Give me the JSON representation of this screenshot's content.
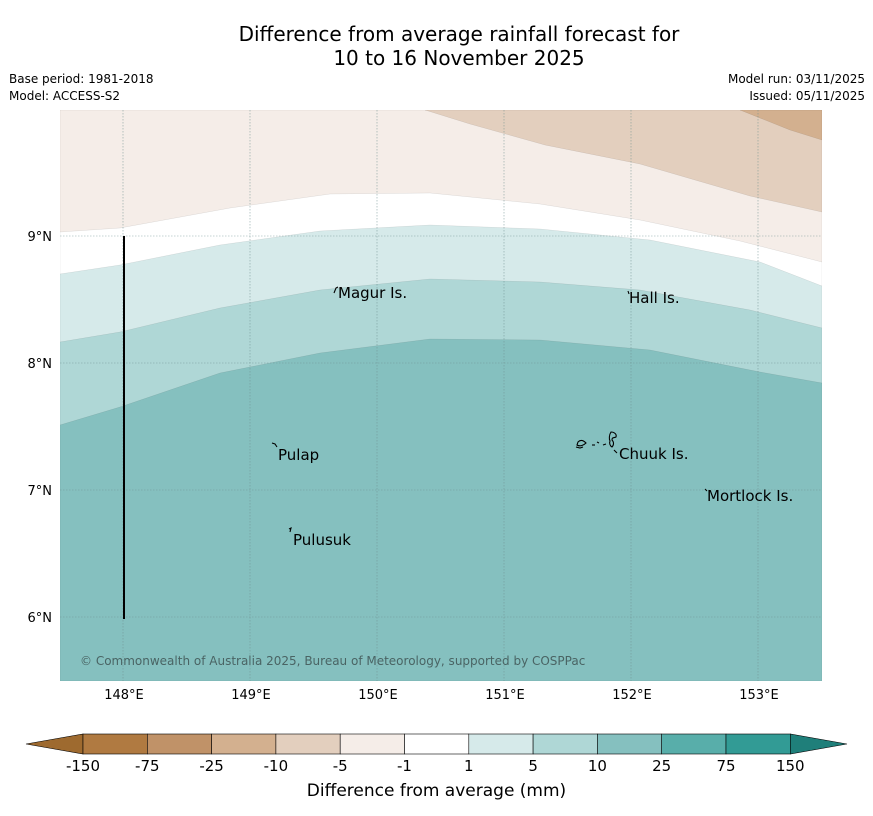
{
  "title": {
    "line1": "Difference from average rainfall forecast for",
    "line2": "10 to 16 November 2025"
  },
  "meta": {
    "base_period": "Base period: 1981-2018",
    "model": "Model: ACCESS-S2",
    "model_run": "Model run: 03/11/2025",
    "issued": "Issued: 05/11/2025"
  },
  "map": {
    "lon_labels": [
      "148°E",
      "149°E",
      "150°E",
      "151°E",
      "152°E",
      "153°E"
    ],
    "lat_labels": [
      "9°N",
      "8°N",
      "7°N",
      "6°N"
    ],
    "place_labels": [
      "Magur Is.",
      "Hall Is.",
      "Pulap",
      "Chuuk Is.",
      "Mortlock Is.",
      "Pulusuk"
    ],
    "copyright": "© Commonwealth of Australia 2025, Bureau of Meteorology, supported by COSPPac"
  },
  "legend": {
    "title": "Difference from average (mm)",
    "ticks": [
      "-150",
      "-75",
      "-25",
      "-10",
      "-5",
      "-1",
      "1",
      "5",
      "10",
      "25",
      "75",
      "150"
    ],
    "colors": [
      "#b07a41",
      "#c09268",
      "#d3b08f",
      "#e3cfbe",
      "#f5ede8",
      "#ffffff",
      "#d6eaea",
      "#afd7d6",
      "#85c0bf",
      "#58aeaa",
      "#329b95"
    ],
    "under_color": "#9e6a2f",
    "over_color": "#1f7f7a"
  }
}
